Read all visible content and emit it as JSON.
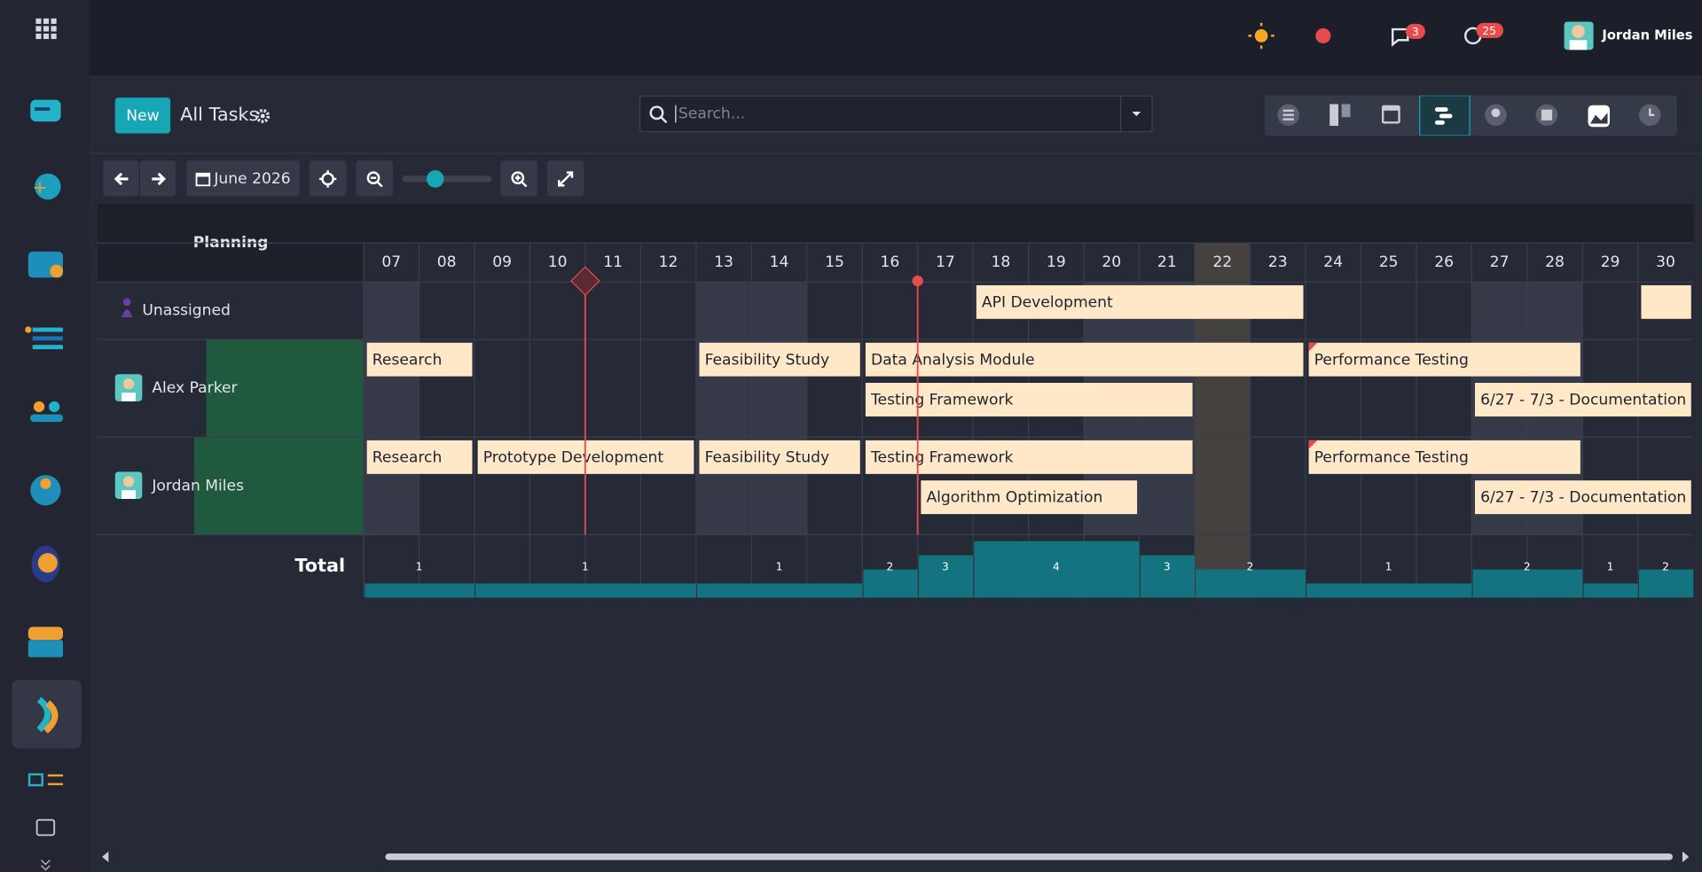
{
  "header": {
    "user_name": "Jordan Miles",
    "messages_badge": "3",
    "activities_badge": "25"
  },
  "control_panel": {
    "new_button": "New",
    "title": "All Tasks",
    "search_placeholder": "Search...",
    "date_button": "June 2026"
  },
  "gantt": {
    "row_header": "Planning",
    "days": [
      "07",
      "08",
      "09",
      "10",
      "11",
      "12",
      "13",
      "14",
      "15",
      "16",
      "17",
      "18",
      "19",
      "20",
      "21",
      "22",
      "23",
      "24",
      "25",
      "26",
      "27",
      "28",
      "29",
      "30"
    ],
    "today": 22,
    "weekends": [
      7,
      13,
      14,
      20,
      21,
      27,
      28
    ],
    "rows": [
      {
        "name": "Unassigned",
        "tasks": [
          {
            "name": "API Development",
            "start": 18,
            "end": 23,
            "lane": 0
          },
          {
            "name": null,
            "start": 30,
            "end": 30,
            "lane": 0
          }
        ]
      },
      {
        "name": "Alex Parker",
        "tasks": [
          {
            "name": "Research",
            "start": 1,
            "end": 8,
            "lane": 0
          },
          {
            "name": "Feasibility Study",
            "start": 13,
            "end": 15,
            "lane": 0
          },
          {
            "name": "Data Analysis Module",
            "start": 16,
            "end": 23,
            "lane": 0
          },
          {
            "name": "Performance Testing",
            "start": 24,
            "end": 28,
            "lane": 0
          },
          {
            "name": "Testing Framework",
            "start": 16,
            "end": 21,
            "lane": 1
          },
          {
            "name": "6/27 - 7/3 - Documentation ...",
            "start": 27,
            "end": 30,
            "lane": 1
          }
        ]
      },
      {
        "name": "Jordan Miles",
        "tasks": [
          {
            "name": "Research",
            "start": 1,
            "end": 8,
            "lane": 0
          },
          {
            "name": "Prototype Development",
            "start": 9,
            "end": 12,
            "lane": 0
          },
          {
            "name": "Feasibility Study",
            "start": 13,
            "end": 15,
            "lane": 0
          },
          {
            "name": "Testing Framework",
            "start": 16,
            "end": 21,
            "lane": 0
          },
          {
            "name": "Performance Testing",
            "start": 24,
            "end": 28,
            "lane": 0
          },
          {
            "name": "Algorithm Optimization",
            "start": 17,
            "end": 20,
            "lane": 1
          },
          {
            "name": "6/27 - 7/3 - Documentation ...",
            "start": 27,
            "end": 30,
            "lane": 1
          }
        ]
      }
    ],
    "total": {
      "label": "Total",
      "segments": [
        {
          "value": 1,
          "days": 2
        },
        {
          "value": 1,
          "days": 4
        },
        {
          "value": 1,
          "days": 3
        },
        {
          "value": 2,
          "days": 1
        },
        {
          "value": 3,
          "days": 1
        },
        {
          "value": 4,
          "days": 3
        },
        {
          "value": 3,
          "days": 1
        },
        {
          "value": 2,
          "days": 2
        },
        {
          "value": 1,
          "days": 3
        },
        {
          "value": 2,
          "days": 2
        },
        {
          "value": 1,
          "days": 1
        },
        {
          "value": 2,
          "days": 1
        }
      ]
    }
  }
}
